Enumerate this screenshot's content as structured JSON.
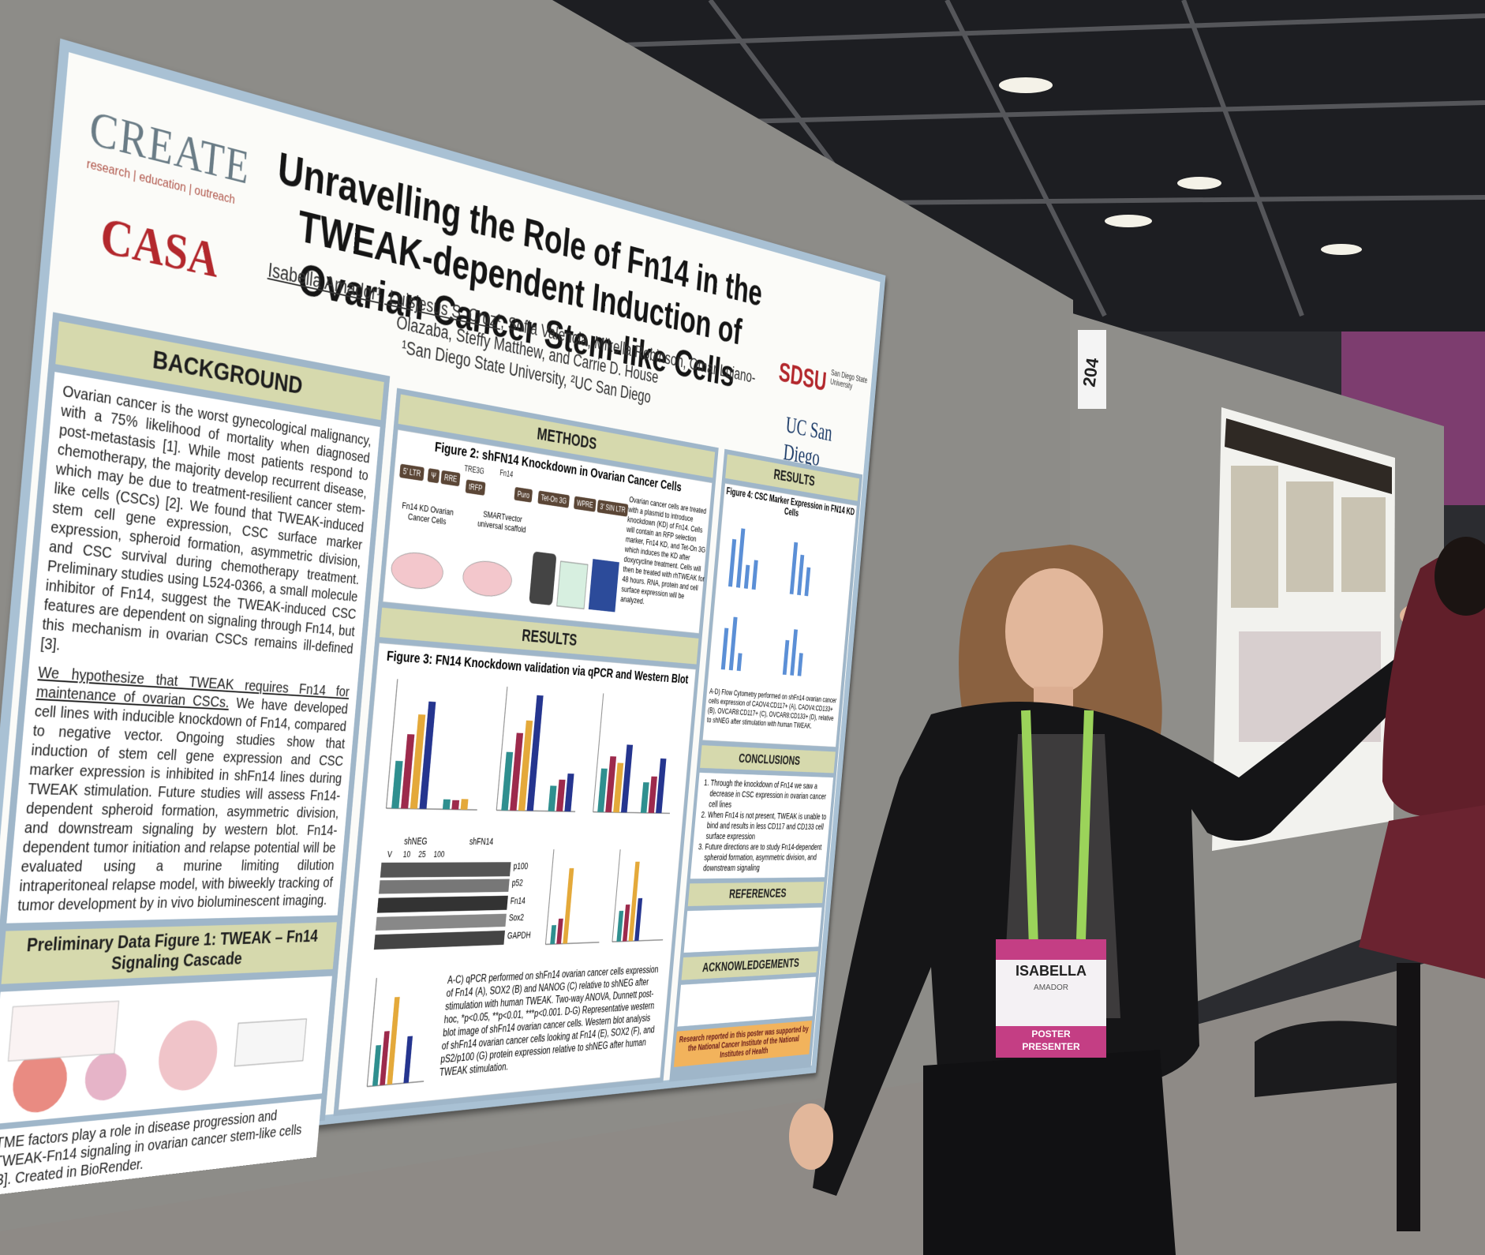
{
  "poster": {
    "logos": {
      "create": "CREATE",
      "create_tagline": "research | education | outreach",
      "casa": "CASA",
      "sdsu": "SDSU",
      "sdsu_name": "San Diego State University",
      "ucsd": "UC San Diego"
    },
    "title": "Unravelling the Role of Fn14 in the TWEAK-dependent Induction of Ovarian Cancer Stem-like Cells",
    "authors": {
      "lead": "Isabella Amador¹, Luisjesus S. Cruz¹",
      "rest": ", Sofia Valencia, Mikella Robinson, Omar Lujano-Olazaba, Steffy Matthew, and Carrie D. House",
      "affiliations": "¹San Diego State University, ²UC San Diego"
    },
    "background": {
      "heading": "BACKGROUND",
      "paragraph_1": "Ovarian cancer is the worst gynecological malignancy, with a 75% likelihood of mortality when diagnosed post-metastasis [1]. While most patients respond to chemotherapy, the majority develop recurrent disease, which may be due to treatment-resilient cancer stem-like cells (CSCs) [2]. We found that TWEAK-induced stem cell gene expression, CSC surface marker expression, spheroid formation, asymmetric division, and CSC survival during chemotherapy treatment. Preliminary studies using L524-0366, a small molecule inhibitor of Fn14, suggest the TWEAK-induced CSC features are dependent on signaling through Fn14, but this mechanism in ovarian CSCs remains ill-defined [3].",
      "hypothesis": "We hypothesize that TWEAK requires Fn14 for maintenance of ovarian CSCs.",
      "paragraph_2": " We have developed cell lines with inducible knockdown of Fn14, compared to negative vector. Ongoing studies show that induction of stem cell gene expression and CSC marker expression is inhibited in shFn14 lines during TWEAK stimulation. Future studies will assess Fn14-dependent spheroid formation, asymmetric division, and downstream signaling by western blot. Fn14-dependent tumor initiation and relapse potential will be evaluated using a murine limiting dilution intraperitoneal relapse model, with biweekly tracking of tumor development by in vivo bioluminescent imaging."
    },
    "preliminary": {
      "heading": "Preliminary Data Figure 1: TWEAK – Fn14 Signaling Cascade",
      "caption": "TME factors play a role in disease progression and TWEAK-Fn14 signaling in ovarian cancer stem-like cells [3]. Created in BioRender."
    },
    "methods": {
      "heading": "METHODS",
      "figure": "Figure 2: shFN14 Knockdown in Ovarian Cancer Cells",
      "construct": [
        "5' LTR",
        "Ψ",
        "RRE",
        "TRE3G",
        "tRFP",
        "Fn14",
        "Puro",
        "Tet-On 3G",
        "WPRE",
        "3' SIN LTR"
      ],
      "cells": "Fn14 KD Ovarian Cancer Cells",
      "scaffold": "SMARTvector universal scaffold",
      "text": "Ovarian cancer cells are treated with a plasmid to introduce knockdown (KD) of Fn14. Cells will contain an RFP selection marker, Fn14 KD, and Tet-On 3G which induces the KD after doxycycline treatment. Cells will then be treated with rhTWEAK for 48 hours. RNA, protein and cell surface expression will be analyzed."
    },
    "results": {
      "heading": "RESULTS",
      "figure": "Figure 3: FN14 Knockdown validation via qPCR and Western Blot",
      "blot_groups": [
        "shNEG",
        "shFN14"
      ],
      "blot_lanes": [
        "V",
        "10",
        "25",
        "100"
      ],
      "blot_proteins": [
        "p100",
        "p52",
        "Fn14",
        "Sox2",
        "GAPDH"
      ],
      "caption": "A-C) qPCR performed on shFn14 ovarian cancer cells expression of Fn14 (A), SOX2 (B) and NANOG (C) relative to shNEG after stimulation with human TWEAK. Two-way ANOVA, Dunnett post-hoc, *p<0.05, **p<0.01, ***p<0.001. D-G) Representative western blot image of shFn14 ovarian cancer cells. Western blot analysis of shFn14 ovarian cancer cells looking at Fn14 (E), SOX2 (F), and pS2/p100 (G) protein expression relative to shNEG after human TWEAK stimulation."
    },
    "side": {
      "results_heading": "RESULTS",
      "figure": "Figure 4: CSC Marker Expression in FN14 KD Cells",
      "figure_caption": "A-D) Flow Cytometry performed on shFn14 ovarian cancer cells expression of CAOV4:CD117+ (A), CAOV4:CD133+ (B), OVCAR8:CD117+ (C), OVCAR8:CD133+ (D), relative to shNEG after stimulation with human TWEAK.",
      "conclusions_heading": "CONCLUSIONS",
      "conclusions": [
        "Through the knockdown of Fn14 we saw a decrease in CSC expression in ovarian cancer cell lines",
        "When Fn14 is not present, TWEAK is unable to bind and results in less CD117 and CD133 cell surface expression",
        "Future directions are to study Fn14-dependent spheroid formation, asymmetric division, and downstream signaling"
      ],
      "references_heading": "REFERENCES",
      "acknowledgements_heading": "ACKNOWLEDGEMENTS",
      "funding": "Research reported in this poster was supported by the National Cancer Institute of the National Institutes of Health"
    }
  },
  "board_number": "204",
  "badge": {
    "name": "ISABELLA",
    "surname": "AMADOR",
    "role": "POSTER PRESENTER"
  }
}
